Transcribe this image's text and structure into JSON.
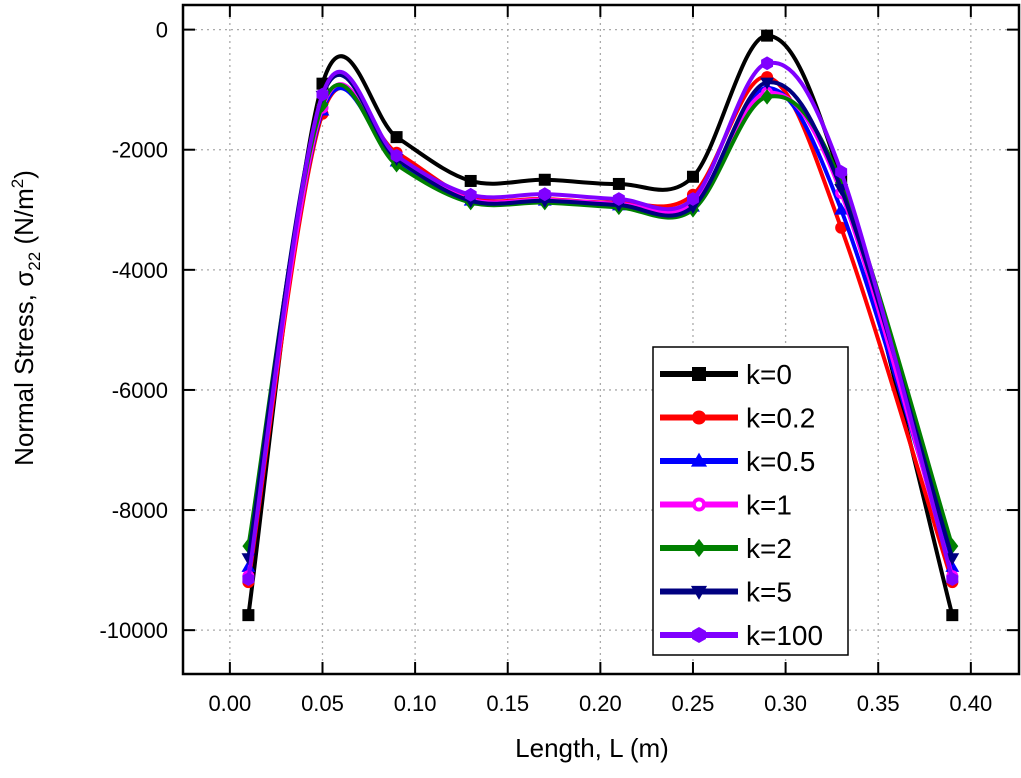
{
  "chart_data": {
    "type": "line",
    "title": "",
    "xlabel": "Length, L (m)",
    "ylabel": {
      "main": "Normal Stress, σ",
      "sub": "22",
      "unit": " (N/m",
      "sup": "2",
      "close": ")"
    },
    "xlim": [
      -0.0253,
      0.426
    ],
    "ylim": [
      -10730,
      410
    ],
    "xticks": [
      0.0,
      0.05,
      0.1,
      0.15,
      0.2,
      0.25,
      0.3,
      0.35,
      0.4
    ],
    "xtick_labels": [
      "0.00",
      "0.05",
      "0.10",
      "0.15",
      "0.20",
      "0.25",
      "0.30",
      "0.35",
      "0.40"
    ],
    "yticks": [
      0,
      -2000,
      -4000,
      -6000,
      -8000,
      -10000
    ],
    "ytick_labels": [
      "0",
      "-2000",
      "-4000",
      "-6000",
      "-8000",
      "-10000"
    ],
    "grid": true,
    "legend_position": "bottom-right",
    "x": [
      0.01,
      0.05,
      0.09,
      0.13,
      0.17,
      0.21,
      0.25,
      0.29,
      0.33,
      0.39
    ],
    "series": [
      {
        "name": "k=0",
        "color": "#000000",
        "marker": "square",
        "values": [
          -9750,
          -900,
          -1790,
          -2520,
          -2500,
          -2570,
          -2450,
          -100,
          -2500,
          -9750
        ]
      },
      {
        "name": "k=0.2",
        "color": "#ff0000",
        "marker": "circle",
        "values": [
          -9200,
          -1400,
          -2050,
          -2800,
          -2820,
          -2880,
          -2750,
          -790,
          -3300,
          -9200
        ]
      },
      {
        "name": "k=0.5",
        "color": "#0000ff",
        "marker": "triangle-up",
        "values": [
          -8950,
          -1350,
          -2200,
          -2850,
          -2850,
          -2930,
          -2950,
          -970,
          -3000,
          -8950
        ]
      },
      {
        "name": "k=1",
        "color": "#ff00ff",
        "marker": "circle-open",
        "values": [
          -9100,
          -1300,
          -2150,
          -2830,
          -2830,
          -2900,
          -2900,
          -1050,
          -2720,
          -9100
        ]
      },
      {
        "name": "k=2",
        "color": "#008000",
        "marker": "diamond",
        "values": [
          -8600,
          -1250,
          -2250,
          -2880,
          -2880,
          -2960,
          -3000,
          -1120,
          -2550,
          -8600
        ]
      },
      {
        "name": "k=5",
        "color": "#000080",
        "marker": "triangle-down",
        "values": [
          -8800,
          -1100,
          -2150,
          -2850,
          -2850,
          -2920,
          -2950,
          -880,
          -2650,
          -8800
        ]
      },
      {
        "name": "k=100",
        "color": "#8000ff",
        "marker": "hexagon",
        "values": [
          -9150,
          -1080,
          -2100,
          -2750,
          -2740,
          -2820,
          -2820,
          -560,
          -2370,
          -9150
        ]
      }
    ]
  }
}
